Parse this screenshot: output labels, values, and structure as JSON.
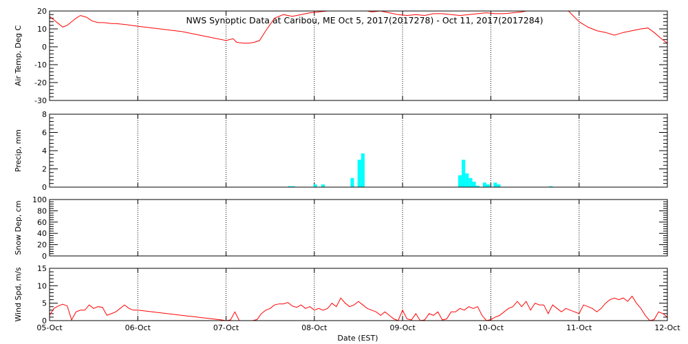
{
  "chart_data": {
    "title": "NWS Synoptic Data at Caribou, ME   Oct  5, 2017(2017278) - Oct 11, 2017(2017284)",
    "xlabel": "Date (EST)",
    "x_ticks": [
      "05-Oct",
      "06-Oct",
      "07-Oct",
      "08-Oct",
      "09-Oct",
      "10-Oct",
      "11-Oct",
      "12-Oct"
    ],
    "x_range_days": [
      0,
      7
    ],
    "grid": "dotted vertical at day boundaries",
    "panels": [
      {
        "id": "air-temp",
        "type": "line",
        "ylabel": "Air Temp, Deg C",
        "ylim": [
          -30,
          20
        ],
        "yticks": [
          -30,
          -20,
          -10,
          0,
          10,
          20
        ],
        "color": "#ff0000",
        "x": [
          0.0,
          0.05,
          0.1,
          0.15,
          0.2,
          0.25,
          0.3,
          0.35,
          0.42,
          0.48,
          0.55,
          0.62,
          0.7,
          0.75,
          0.85,
          1.0,
          1.5,
          2.0,
          2.08,
          2.12,
          2.2,
          2.26,
          2.32,
          2.38,
          2.45,
          2.55,
          2.65,
          2.75,
          2.85,
          2.95,
          3.05,
          3.15,
          3.25,
          3.35,
          3.45,
          3.55,
          3.65,
          3.75,
          3.85,
          3.95,
          4.05,
          4.15,
          4.25,
          4.35,
          4.45,
          4.55,
          4.65,
          4.75,
          4.85,
          4.95,
          5.05,
          5.15,
          5.25,
          5.35,
          5.45,
          5.55,
          5.65,
          5.75,
          5.82,
          5.88,
          6.0,
          6.1,
          6.2,
          6.3,
          6.4,
          6.5,
          6.6,
          6.7,
          6.78,
          6.85,
          6.92,
          7.0
        ],
        "y": [
          17,
          15,
          13,
          11,
          12,
          14,
          16,
          17.5,
          16.5,
          14.5,
          13.5,
          13.5,
          13,
          13,
          12.5,
          11.5,
          8.5,
          3.5,
          4.5,
          2.5,
          2,
          2,
          2.5,
          3.5,
          9,
          16,
          18,
          17,
          18,
          19,
          19.5,
          20,
          20,
          20.5,
          20.5,
          20.5,
          19.5,
          20,
          19,
          18,
          17.5,
          18,
          17.5,
          18.5,
          18.5,
          18,
          17.5,
          18,
          18.5,
          19,
          18.5,
          18.5,
          19,
          19.5,
          20.5,
          20.5,
          20.5,
          20.5,
          20.5,
          20,
          14,
          11,
          9,
          8,
          6.5,
          8,
          9,
          10,
          10.5,
          8,
          5,
          2
        ]
      },
      {
        "id": "precip",
        "type": "bar",
        "ylabel": "Precip, mm",
        "ylim": [
          0,
          8
        ],
        "yticks": [
          0,
          2,
          4,
          6,
          8
        ],
        "color": "#00ffff",
        "bar_width_days": 0.04,
        "x": [
          2.72,
          2.76,
          3.01,
          3.1,
          3.43,
          3.51,
          3.55,
          4.65,
          4.69,
          4.73,
          4.77,
          4.81,
          4.85,
          4.93,
          4.97,
          5.05,
          5.09,
          5.68
        ],
        "y": [
          0.1,
          0.1,
          0.3,
          0.3,
          1.0,
          3.0,
          3.7,
          1.3,
          3.0,
          1.5,
          1.0,
          0.6,
          0.15,
          0.5,
          0.3,
          0.5,
          0.3,
          0.1
        ]
      },
      {
        "id": "snow-depth",
        "type": "line",
        "ylabel": "Snow Dep, cm",
        "ylim": [
          0,
          100
        ],
        "yticks": [
          0,
          20,
          40,
          60,
          80,
          100
        ],
        "color": "#ff0000",
        "x": [],
        "y": []
      },
      {
        "id": "wind-speed",
        "type": "line",
        "ylabel": "Wind Spd, m/s",
        "ylim": [
          0,
          15
        ],
        "yticks": [
          0,
          5,
          10,
          15
        ],
        "color": "#ff0000",
        "x": [
          0.0,
          0.05,
          0.1,
          0.15,
          0.2,
          0.25,
          0.3,
          0.35,
          0.4,
          0.45,
          0.5,
          0.55,
          0.6,
          0.65,
          0.7,
          0.75,
          0.8,
          0.85,
          0.9,
          0.95,
          1.0,
          1.5,
          1.95,
          2.0,
          2.05,
          2.1,
          2.15,
          2.2,
          2.25,
          2.3,
          2.35,
          2.4,
          2.45,
          2.5,
          2.55,
          2.6,
          2.65,
          2.7,
          2.75,
          2.8,
          2.85,
          2.9,
          2.95,
          3.0,
          3.05,
          3.1,
          3.15,
          3.2,
          3.25,
          3.3,
          3.35,
          3.4,
          3.45,
          3.5,
          3.55,
          3.6,
          3.65,
          3.7,
          3.75,
          3.8,
          3.85,
          3.9,
          3.95,
          4.0,
          4.05,
          4.1,
          4.15,
          4.2,
          4.25,
          4.3,
          4.35,
          4.4,
          4.45,
          4.5,
          4.55,
          4.6,
          4.65,
          4.7,
          4.75,
          4.8,
          4.85,
          4.9,
          4.95,
          5.0,
          5.05,
          5.1,
          5.15,
          5.2,
          5.25,
          5.3,
          5.35,
          5.4,
          5.45,
          5.5,
          5.55,
          5.6,
          5.65,
          5.7,
          5.75,
          5.8,
          5.85,
          5.9,
          5.95,
          6.0,
          6.05,
          6.1,
          6.15,
          6.2,
          6.25,
          6.3,
          6.35,
          6.4,
          6.45,
          6.5,
          6.55,
          6.6,
          6.65,
          6.7,
          6.75,
          6.8,
          6.85,
          6.9,
          6.95,
          7.0
        ],
        "y": [
          1.5,
          3.5,
          4.2,
          4.7,
          4.2,
          0.2,
          2.5,
          3.0,
          3.0,
          4.5,
          3.5,
          4.0,
          3.8,
          1.5,
          2.0,
          2.5,
          3.5,
          4.5,
          3.5,
          3.0,
          3.0,
          1.5,
          0.2,
          0,
          0.2,
          2.5,
          0,
          0,
          0,
          0,
          0.3,
          2.0,
          3.0,
          3.5,
          4.5,
          4.8,
          4.8,
          5.2,
          4.2,
          3.8,
          4.5,
          3.5,
          4.0,
          3.0,
          3.5,
          3.0,
          3.5,
          5.0,
          4.0,
          6.5,
          5.0,
          4.0,
          4.5,
          5.5,
          4.5,
          3.5,
          3.0,
          2.5,
          1.5,
          2.5,
          1.5,
          0.5,
          0,
          3.0,
          0.5,
          0.2,
          2.0,
          0,
          0.2,
          2.0,
          1.5,
          2.5,
          0.2,
          0.5,
          2.5,
          2.5,
          3.5,
          3.0,
          4.0,
          3.5,
          4.0,
          1.5,
          0,
          0.3,
          1.0,
          1.5,
          2.5,
          3.5,
          4.0,
          5.5,
          4.0,
          5.5,
          3.0,
          5.0,
          4.5,
          4.5,
          2.0,
          4.5,
          3.5,
          2.5,
          3.5,
          3.0,
          2.5,
          2.0,
          4.5,
          4.0,
          3.5,
          2.5,
          3.5,
          5.0,
          6.0,
          6.5,
          6.0,
          6.5,
          5.5,
          7.0,
          5.0,
          3.5,
          1.5,
          0,
          0.3,
          2.5,
          2.0,
          1.0
        ]
      }
    ]
  }
}
